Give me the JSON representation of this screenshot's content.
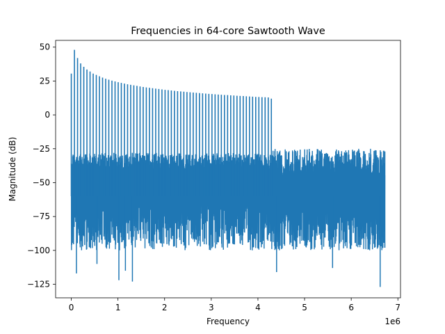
{
  "chart_data": {
    "type": "line",
    "title": "Frequencies in 64-core Sawtooth Wave",
    "xlabel": "Frequency",
    "ylabel": "Magnitude (dB)",
    "x_offset_text": "1e6",
    "xlim": [
      -0.336,
      7.056
    ],
    "ylim": [
      -135,
      55
    ],
    "x_ticks": [
      0,
      1,
      2,
      3,
      4,
      5,
      6,
      7
    ],
    "x_tick_labels": [
      "0",
      "1",
      "2",
      "3",
      "4",
      "5",
      "6",
      "7"
    ],
    "y_ticks": [
      50,
      25,
      0,
      -25,
      -50,
      -75,
      -100,
      -125
    ],
    "y_tick_labels": [
      "50",
      "25",
      "0",
      "−25",
      "−50",
      "−75",
      "−100",
      "−125"
    ],
    "grid": false,
    "series": [
      {
        "color": "#1f77b4",
        "peaks": {
          "x": [
            0.0,
            0.067,
            0.134,
            0.201,
            0.268,
            0.335,
            0.402,
            0.469,
            0.536,
            0.603,
            0.67,
            0.737,
            0.804,
            0.871,
            0.938,
            1.005,
            1.072,
            1.139,
            1.206,
            1.273,
            1.34,
            1.407,
            1.474,
            1.541,
            1.608,
            1.675,
            1.742,
            1.809,
            1.876,
            1.943,
            2.01,
            2.077,
            2.144,
            2.211,
            2.278,
            2.345,
            2.412,
            2.479,
            2.546,
            2.613,
            2.68,
            2.747,
            2.814,
            2.881,
            2.948,
            3.015,
            3.082,
            3.149,
            3.216,
            3.283,
            3.35,
            3.417,
            3.484,
            3.551,
            3.618,
            3.685,
            3.752,
            3.819,
            3.886,
            3.953,
            4.02,
            4.087,
            4.154,
            4.221,
            4.288
          ],
          "y": [
            30.5,
            48.0,
            42.0,
            38.0,
            35.5,
            33.5,
            32.0,
            30.5,
            29.5,
            28.5,
            27.5,
            26.7,
            26.0,
            25.3,
            24.7,
            24.1,
            23.6,
            23.1,
            22.6,
            22.2,
            21.8,
            21.4,
            21.0,
            20.6,
            20.3,
            20.0,
            19.7,
            19.4,
            19.1,
            18.8,
            18.5,
            18.3,
            18.0,
            17.8,
            17.5,
            17.3,
            17.1,
            16.9,
            16.7,
            16.5,
            16.3,
            16.1,
            15.9,
            15.7,
            15.5,
            15.4,
            15.2,
            15.0,
            14.9,
            14.7,
            14.6,
            14.4,
            14.3,
            14.1,
            14.0,
            13.9,
            13.7,
            13.6,
            13.5,
            13.3,
            13.2,
            13.1,
            13.0,
            12.9,
            12.0
          ]
        },
        "noise": {
          "x_range": [
            0.0,
            6.72
          ],
          "low_band_top": [
            -28,
            -40
          ],
          "low_band_bottom": [
            -65,
            -100
          ],
          "high_band_top": [
            -25,
            -45
          ],
          "high_band_bottom": [
            -70,
            -100
          ],
          "min_spikes": [
            {
              "x": 0.11,
              "y": -117
            },
            {
              "x": 1.02,
              "y": -122
            },
            {
              "x": 1.31,
              "y": -123
            },
            {
              "x": 1.16,
              "y": -115
            },
            {
              "x": 0.55,
              "y": -110
            },
            {
              "x": 6.62,
              "y": -127
            },
            {
              "x": 4.4,
              "y": -116
            },
            {
              "x": 5.6,
              "y": -113
            }
          ]
        }
      }
    ]
  }
}
